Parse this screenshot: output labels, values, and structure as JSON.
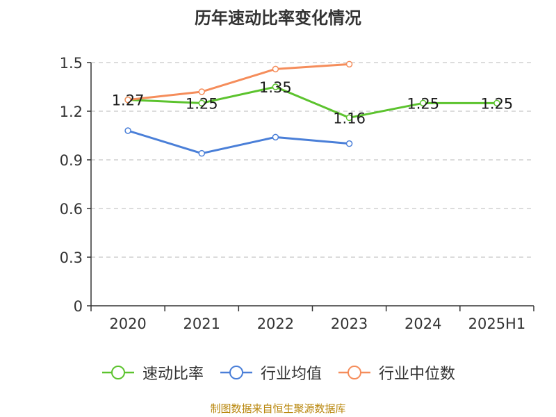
{
  "title": "历年速动比率变化情况",
  "source": "制图数据来自恒生聚源数据库",
  "chart_data": {
    "type": "line",
    "categories": [
      "2020",
      "2021",
      "2022",
      "2023",
      "2024",
      "2025H1"
    ],
    "ylim": [
      0,
      1.5
    ],
    "yticks": [
      "0",
      "0.3",
      "0.6",
      "0.9",
      "1.2",
      "1.5"
    ],
    "grid": true,
    "legend_position": "bottom",
    "series": [
      {
        "name": "速动比率",
        "color": "#5cc32e",
        "values": [
          1.27,
          1.25,
          1.35,
          1.16,
          1.25,
          1.25
        ],
        "labels": [
          "1.27",
          "1.25",
          "1.35",
          "1.16",
          "1.25",
          "1.25"
        ]
      },
      {
        "name": "行业均值",
        "color": "#4a7fd8",
        "values": [
          1.08,
          0.94,
          1.04,
          1.0,
          null,
          null
        ]
      },
      {
        "name": "行业中位数",
        "color": "#f58d5b",
        "values": [
          1.27,
          1.32,
          1.46,
          1.49,
          null,
          null
        ]
      }
    ]
  }
}
